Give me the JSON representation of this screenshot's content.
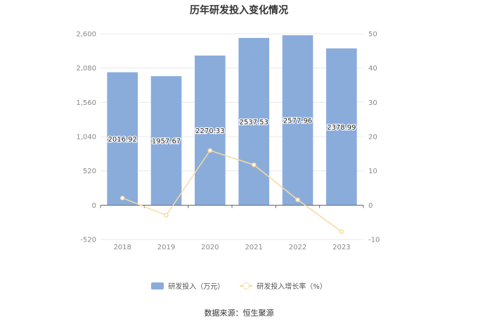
{
  "title": "历年研发投入变化情况",
  "source": "数据来源：恒生聚源",
  "colors": {
    "bar": "#8aacdb",
    "line": "#f9d9a0",
    "grid": "#e8e8e8",
    "axis": "#666666"
  },
  "chart_data": {
    "type": "bar",
    "categories": [
      "2018",
      "2019",
      "2020",
      "2021",
      "2022",
      "2023"
    ],
    "series": [
      {
        "name": "研发投入（万元）",
        "type": "bar",
        "axis": "left",
        "values": [
          2016.92,
          1957.67,
          2270.33,
          2537.53,
          2577.96,
          2378.99
        ],
        "labels": [
          "2016.92",
          "1957.67",
          "2270.33",
          "2537.53",
          "2577.96",
          "2378.99"
        ]
      },
      {
        "name": "研发投入增长率（%）",
        "type": "line",
        "axis": "right",
        "values": [
          2.1,
          -2.94,
          15.97,
          11.77,
          1.59,
          -7.72
        ]
      }
    ],
    "y_left": {
      "min": -520,
      "max": 2600,
      "ticks": [
        "2,600",
        "2,080",
        "1,560",
        "1,040",
        "520",
        "0",
        "-520"
      ]
    },
    "y_right": {
      "min": -10,
      "max": 50,
      "ticks": [
        "50",
        "40",
        "30",
        "20",
        "10",
        "0",
        "-10"
      ]
    },
    "legend": "bottom",
    "grid": true
  }
}
